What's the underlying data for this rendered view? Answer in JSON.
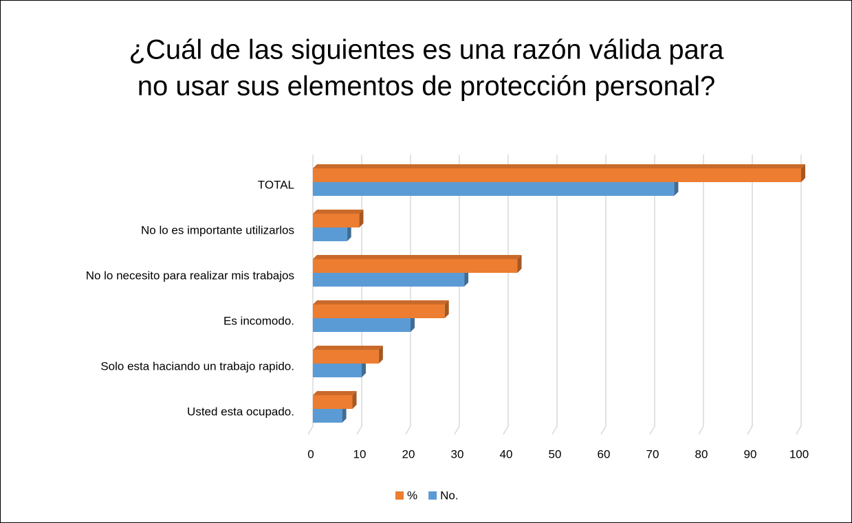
{
  "chart_data": {
    "type": "bar",
    "orientation": "horizontal",
    "three_d": true,
    "title": [
      "¿Cuál de las siguientes es una razón válida para",
      "no usar sus elementos de protección personal?"
    ],
    "categories": [
      "TOTAL",
      "No lo es importante utilizarlos",
      "No lo necesito para realizar mis trabajos",
      "Es incomodo.",
      "Solo esta haciando un trabajo rapido.",
      "Usted esta ocupado."
    ],
    "series": [
      {
        "name": "%",
        "color": "#ed7d31",
        "values": [
          100,
          9.5,
          41.9,
          27.0,
          13.5,
          8.1
        ]
      },
      {
        "name": "No.",
        "color": "#5b9bd5",
        "values": [
          74,
          7,
          31,
          20,
          10,
          6
        ]
      }
    ],
    "xlim": [
      0,
      100
    ],
    "xticks": [
      0,
      10,
      20,
      30,
      40,
      50,
      60,
      70,
      80,
      90,
      100
    ],
    "grid": true,
    "legend": "bottom"
  }
}
